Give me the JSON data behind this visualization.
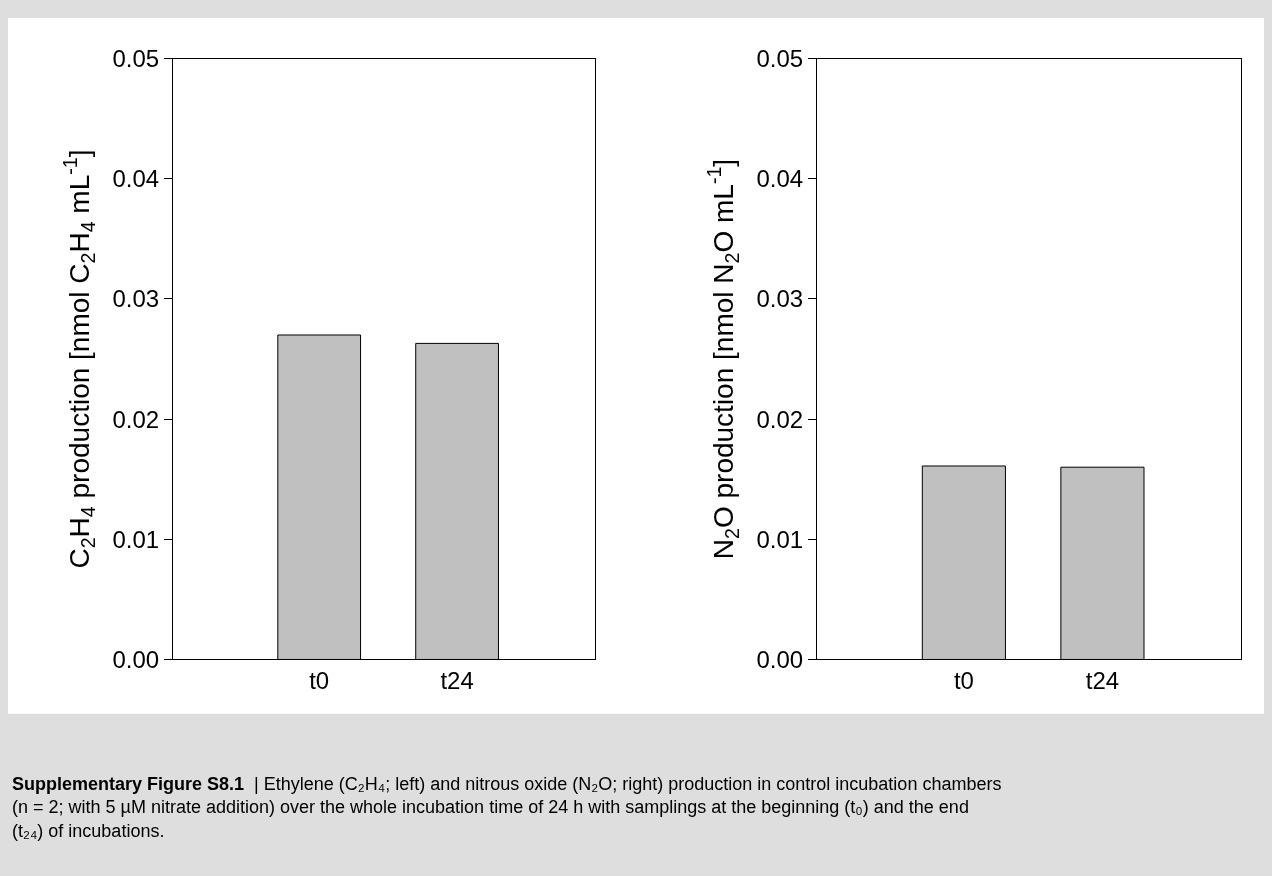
{
  "chart_data": [
    {
      "type": "bar",
      "categories": [
        "t0",
        "t24"
      ],
      "values": [
        0.027,
        0.0263
      ],
      "color": "#c0c0c0",
      "ylabel": "C$_{2}$H$_{4}$ production [nmol C$_{2}$H$_{4}$ mL$^{-1}$]",
      "ylim": [
        0,
        0.05
      ],
      "yticks": [
        {
          "value": 0,
          "label": "0.00"
        },
        {
          "value": 0.01,
          "label": "0.01"
        },
        {
          "value": 0.02,
          "label": "0.02"
        },
        {
          "value": 0.03,
          "label": "0.03"
        },
        {
          "value": 0.04,
          "label": "0.04"
        },
        {
          "value": 0.05,
          "label": "0.05"
        }
      ]
    },
    {
      "type": "bar",
      "categories": [
        "t0",
        "t24"
      ],
      "values": [
        0.0161,
        0.016
      ],
      "color": "#c0c0c0",
      "ylabel": "N$_{2}$O production [nmol N$_{2}$O mL$^{-1}$]",
      "ylim": [
        0,
        0.05
      ],
      "yticks": [
        {
          "value": 0,
          "label": "0.00"
        },
        {
          "value": 0.01,
          "label": "0.01"
        },
        {
          "value": 0.02,
          "label": "0.02"
        },
        {
          "value": 0.03,
          "label": "0.03"
        },
        {
          "value": 0.04,
          "label": "0.04"
        },
        {
          "value": 0.05,
          "label": "0.05"
        }
      ],
      "annotations": [
        "Supplementary Figure S8.1",
        "| Ethylene (C₂H₄; left) and nitrous oxide (N₂O; right) production in control incubation chambers (n = 2; with 5 µM nitrate addition) over the whole incubation time of 24 h with samplings at the beginning (t₀) and the end (t₂₄) of incubations."
      ]
    }
  ]
}
